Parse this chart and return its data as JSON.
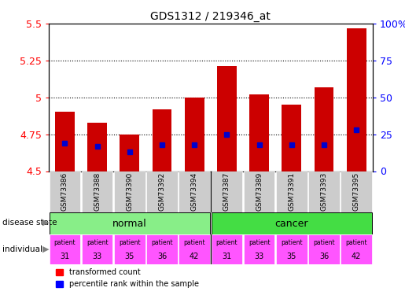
{
  "title": "GDS1312 / 219346_at",
  "samples": [
    "GSM73386",
    "GSM73388",
    "GSM73390",
    "GSM73392",
    "GSM73394",
    "GSM73387",
    "GSM73389",
    "GSM73391",
    "GSM73393",
    "GSM73395"
  ],
  "bar_heights": [
    4.9,
    4.83,
    4.75,
    4.92,
    5.0,
    5.21,
    5.02,
    4.95,
    5.07,
    5.47
  ],
  "blue_dot_y": [
    4.69,
    4.67,
    4.63,
    4.68,
    4.68,
    4.75,
    4.68,
    4.68,
    4.68,
    4.78
  ],
  "ylim_left": [
    4.5,
    5.5
  ],
  "ylim_right": [
    0,
    100
  ],
  "yticks_left": [
    4.5,
    4.75,
    5.0,
    5.25,
    5.5
  ],
  "yticks_right": [
    0,
    25,
    50,
    75,
    100
  ],
  "ytick_labels_left": [
    "4.5",
    "4.75",
    "5",
    "5.25",
    "5.5"
  ],
  "ytick_labels_right": [
    "0",
    "25",
    "50",
    "75",
    "100%"
  ],
  "individual_normal": [
    "31",
    "33",
    "35",
    "36",
    "42"
  ],
  "individual_cancer": [
    "31",
    "33",
    "35",
    "36",
    "42"
  ],
  "bar_color": "#cc0000",
  "blue_dot_color": "#0000cc",
  "normal_color": "#88ee88",
  "cancer_color": "#44dd44",
  "individual_color": "#ff55ff",
  "sample_label_bgcolor": "#cccccc",
  "base_value": 4.5,
  "bar_width": 0.6
}
